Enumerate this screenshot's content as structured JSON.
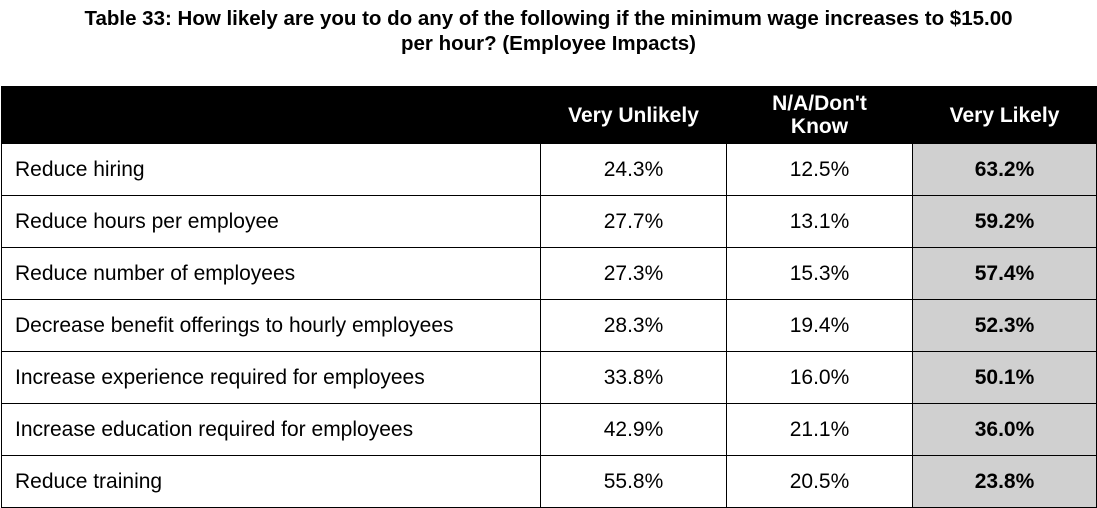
{
  "title": {
    "line1": "Table 33: How likely are you to do any of the following if the minimum wage increases to $15.00",
    "line2": "per hour? (Employee Impacts)"
  },
  "columns": [
    "",
    "Very Unlikely",
    "N/A/Don't Know",
    "Very Likely"
  ],
  "rows": [
    {
      "label": "Reduce hiring",
      "very_unlikely": "24.3%",
      "na_dont_know": "12.5%",
      "very_likely": "63.2%"
    },
    {
      "label": "Reduce hours per employee",
      "very_unlikely": "27.7%",
      "na_dont_know": "13.1%",
      "very_likely": "59.2%"
    },
    {
      "label": "Reduce number of employees",
      "very_unlikely": "27.3%",
      "na_dont_know": "15.3%",
      "very_likely": "57.4%"
    },
    {
      "label": "Decrease benefit offerings to hourly employees",
      "very_unlikely": "28.3%",
      "na_dont_know": "19.4%",
      "very_likely": "52.3%"
    },
    {
      "label": "Increase experience required for employees",
      "very_unlikely": "33.8%",
      "na_dont_know": "16.0%",
      "very_likely": "50.1%"
    },
    {
      "label": "Increase education required for employees",
      "very_unlikely": "42.9%",
      "na_dont_know": "21.1%",
      "very_likely": "36.0%"
    },
    {
      "label": "Reduce training",
      "very_unlikely": "55.8%",
      "na_dont_know": "20.5%",
      "very_likely": "23.8%"
    }
  ],
  "colors": {
    "header_bg": "#000000",
    "header_text": "#ffffff",
    "highlight_bg": "#d0d0d0"
  }
}
